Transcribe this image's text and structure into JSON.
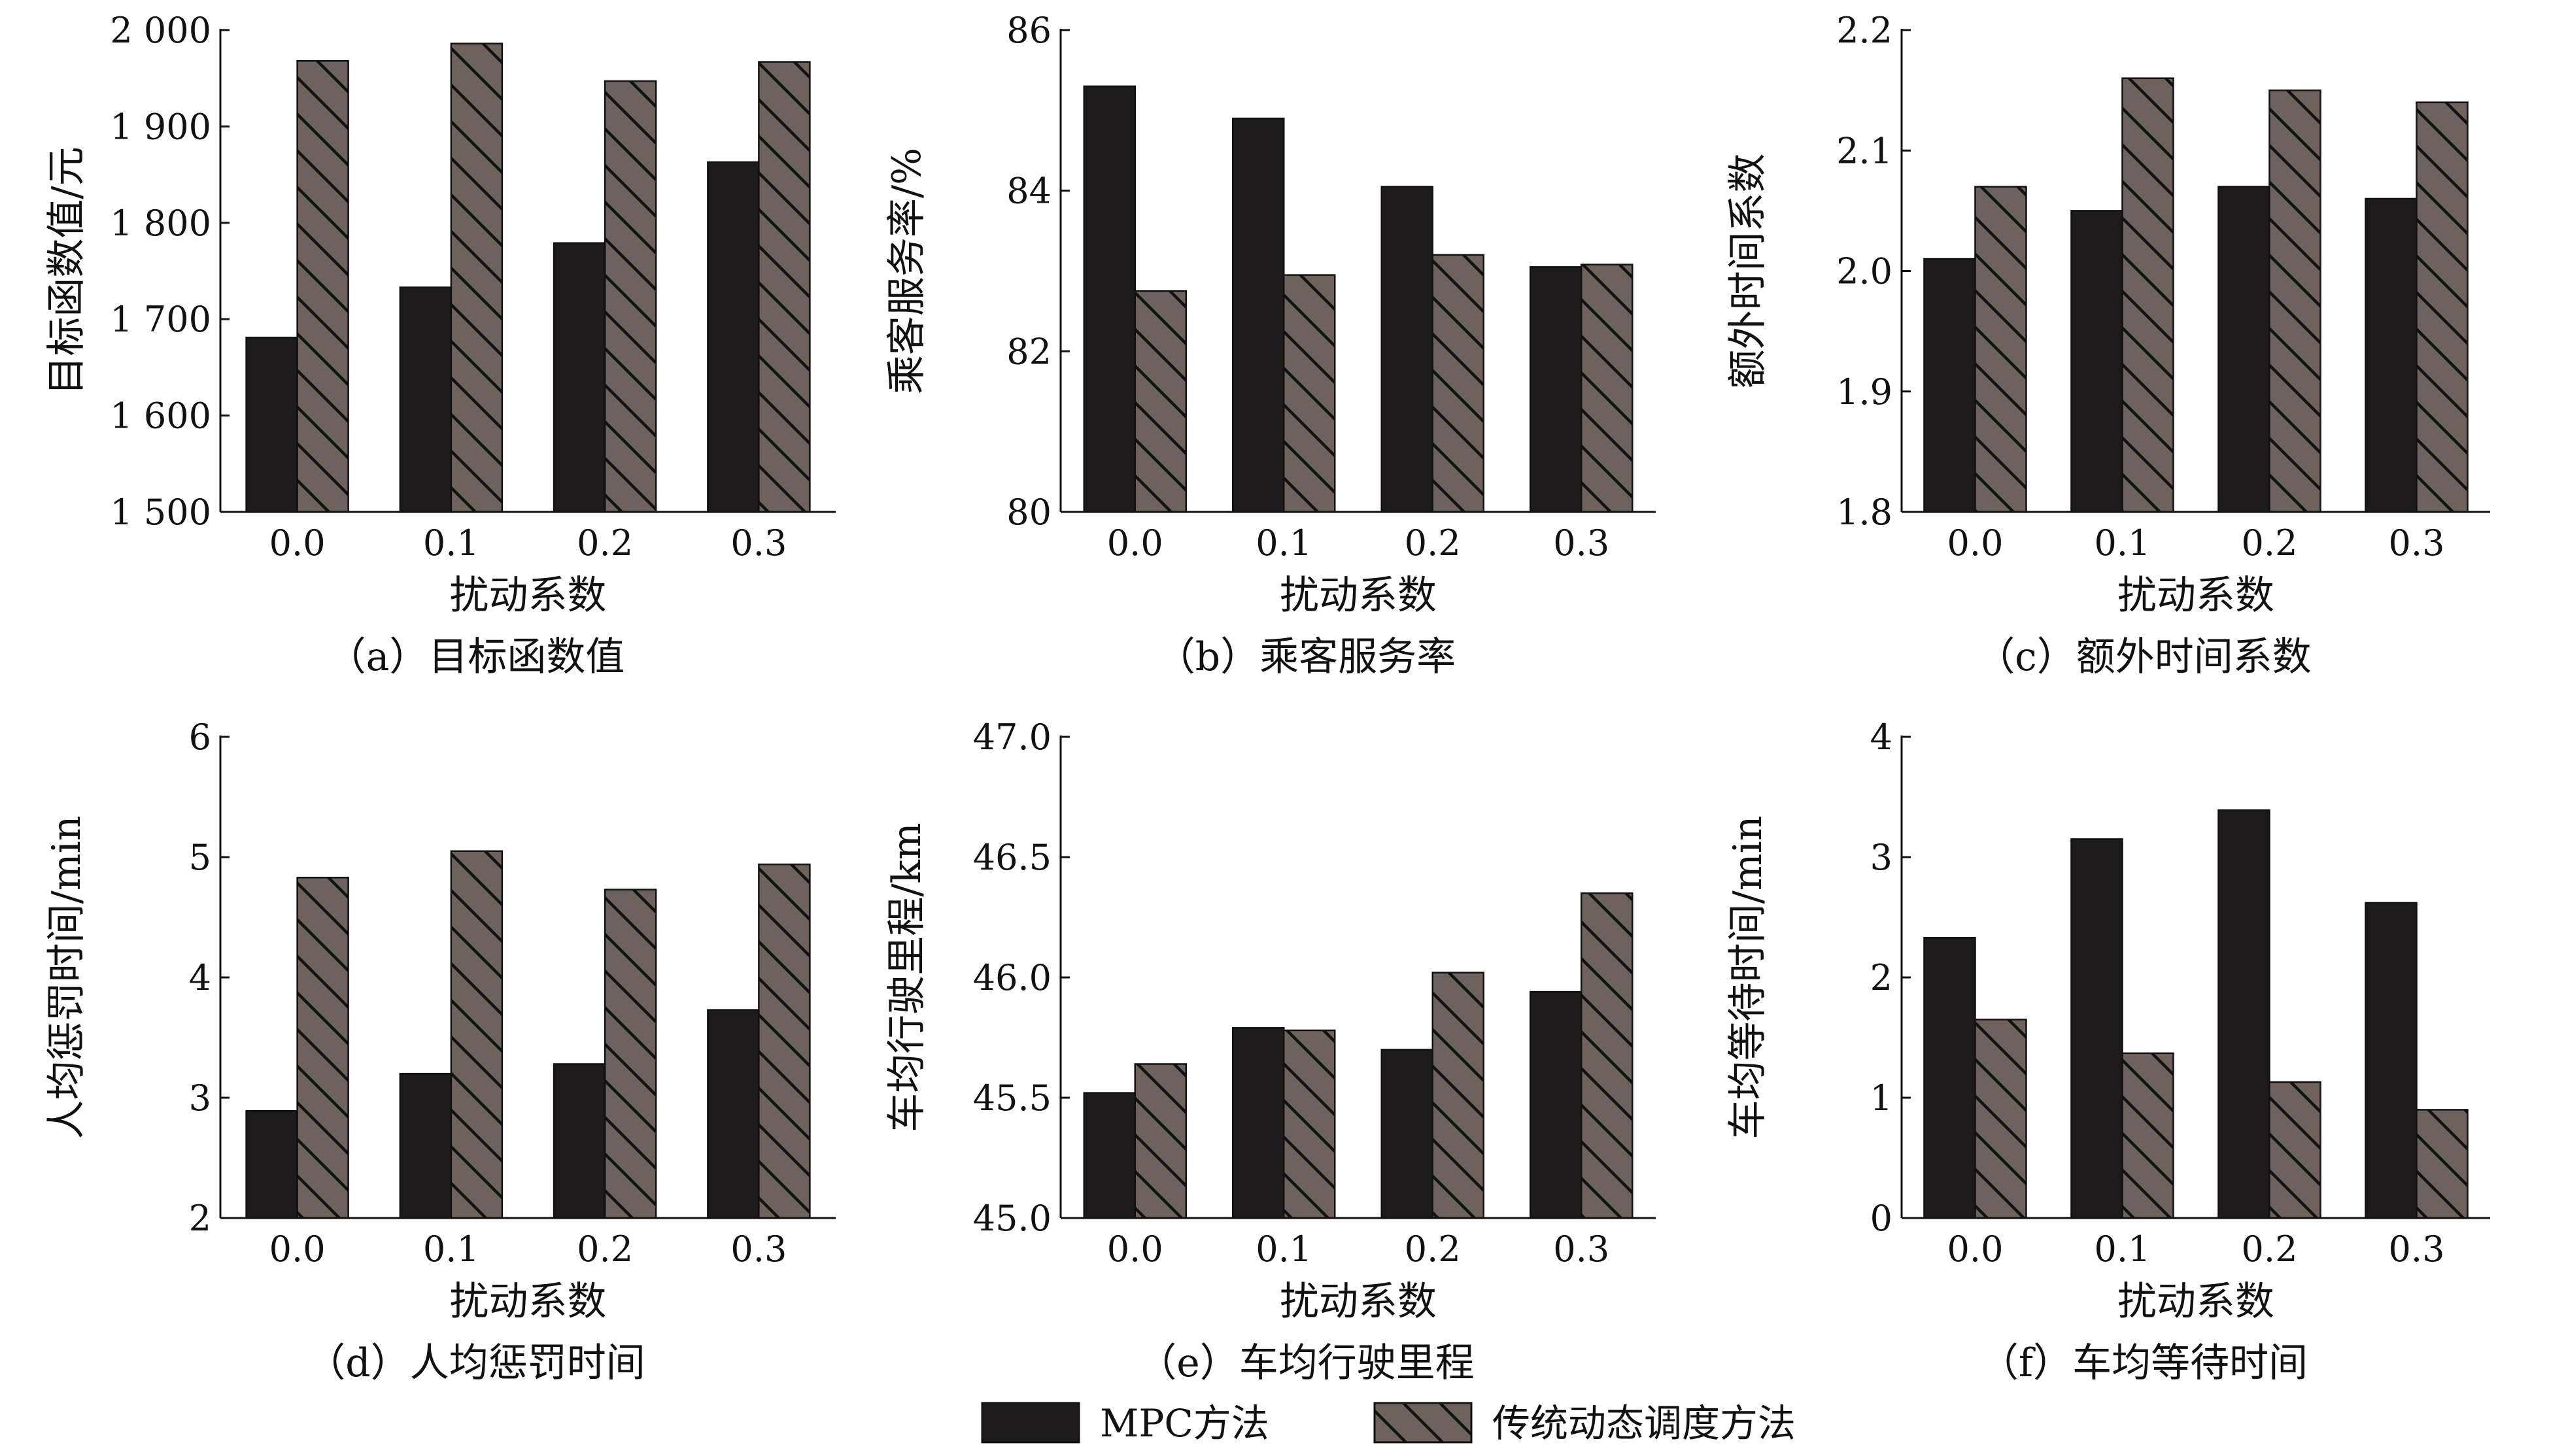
{
  "legend": [
    {
      "label": "MPC方法",
      "color": "#1c1a1b",
      "hatch": false
    },
    {
      "label": "传统动态调度方法",
      "color": "#6e625f",
      "hatch": true
    }
  ],
  "colors": {
    "mpc": "#1c1a1b",
    "traditional": "#6e625f"
  },
  "chart_data": [
    {
      "type": "bar",
      "caption": "（a）目标函数值",
      "xlabel": "扰动系数",
      "ylabel": "目标函数值/元",
      "categories": [
        "0.0",
        "0.1",
        "0.2",
        "0.3"
      ],
      "ylim": [
        1500,
        2000
      ],
      "yticks": [
        1500,
        1600,
        1700,
        1800,
        1900,
        2000
      ],
      "ytick_labels": [
        "1 500",
        "1 600",
        "1 700",
        "1 800",
        "1 900",
        "2 000"
      ],
      "series": [
        {
          "name": "MPC方法",
          "values": [
            1681,
            1733,
            1779,
            1863
          ]
        },
        {
          "name": "传统动态调度方法",
          "values": [
            1968,
            1986,
            1947,
            1967
          ]
        }
      ]
    },
    {
      "type": "bar",
      "caption": "（b）乘客服务率",
      "xlabel": "扰动系数",
      "ylabel": "乘客服务率/%",
      "categories": [
        "0.0",
        "0.1",
        "0.2",
        "0.3"
      ],
      "ylim": [
        80,
        86
      ],
      "yticks": [
        80,
        82,
        84,
        86
      ],
      "ytick_labels": [
        "80",
        "82",
        "84",
        "86"
      ],
      "series": [
        {
          "name": "MPC方法",
          "values": [
            85.3,
            84.9,
            84.05,
            83.05
          ]
        },
        {
          "name": "传统动态调度方法",
          "values": [
            82.75,
            82.95,
            83.2,
            83.08
          ]
        }
      ]
    },
    {
      "type": "bar",
      "caption": "（c）额外时间系数",
      "xlabel": "扰动系数",
      "ylabel": "额外时间系数",
      "categories": [
        "0.0",
        "0.1",
        "0.2",
        "0.3"
      ],
      "ylim": [
        1.8,
        2.2
      ],
      "yticks": [
        1.8,
        1.9,
        2.0,
        2.1,
        2.2
      ],
      "ytick_labels": [
        "1.8",
        "1.9",
        "2.0",
        "2.1",
        "2.2"
      ],
      "series": [
        {
          "name": "MPC方法",
          "values": [
            2.01,
            2.05,
            2.07,
            2.06
          ]
        },
        {
          "name": "传统动态调度方法",
          "values": [
            2.07,
            2.16,
            2.15,
            2.14
          ]
        }
      ]
    },
    {
      "type": "bar",
      "caption": "（d）人均惩罚时间",
      "xlabel": "扰动系数",
      "ylabel": "人均惩罚时间/min",
      "categories": [
        "0.0",
        "0.1",
        "0.2",
        "0.3"
      ],
      "ylim": [
        2,
        6
      ],
      "yticks": [
        2,
        3,
        4,
        5,
        6
      ],
      "ytick_labels": [
        "2",
        "3",
        "4",
        "5",
        "6"
      ],
      "series": [
        {
          "name": "MPC方法",
          "values": [
            2.89,
            3.2,
            3.28,
            3.73
          ]
        },
        {
          "name": "传统动态调度方法",
          "values": [
            4.83,
            5.05,
            4.73,
            4.94
          ]
        }
      ]
    },
    {
      "type": "bar",
      "caption": "（e）车均行驶里程",
      "xlabel": "扰动系数",
      "ylabel": "车均行驶里程/km",
      "categories": [
        "0.0",
        "0.1",
        "0.2",
        "0.3"
      ],
      "ylim": [
        45.0,
        47.0
      ],
      "yticks": [
        45.0,
        45.5,
        46.0,
        46.5,
        47.0
      ],
      "ytick_labels": [
        "45.0",
        "45.5",
        "46.0",
        "46.5",
        "47.0"
      ],
      "series": [
        {
          "name": "MPC方法",
          "values": [
            45.52,
            45.79,
            45.7,
            45.94
          ]
        },
        {
          "name": "传统动态调度方法",
          "values": [
            45.64,
            45.78,
            46.02,
            46.35
          ]
        }
      ]
    },
    {
      "type": "bar",
      "caption": "（f）车均等待时间",
      "xlabel": "扰动系数",
      "ylabel": "车均等待时间/min",
      "categories": [
        "0.0",
        "0.1",
        "0.2",
        "0.3"
      ],
      "ylim": [
        0,
        4
      ],
      "yticks": [
        0,
        1,
        2,
        3,
        4
      ],
      "ytick_labels": [
        "0",
        "1",
        "2",
        "3",
        "4"
      ],
      "series": [
        {
          "name": "MPC方法",
          "values": [
            2.33,
            3.15,
            3.39,
            2.62
          ]
        },
        {
          "name": "传统动态调度方法",
          "values": [
            1.65,
            1.37,
            1.13,
            0.9
          ]
        }
      ]
    }
  ]
}
